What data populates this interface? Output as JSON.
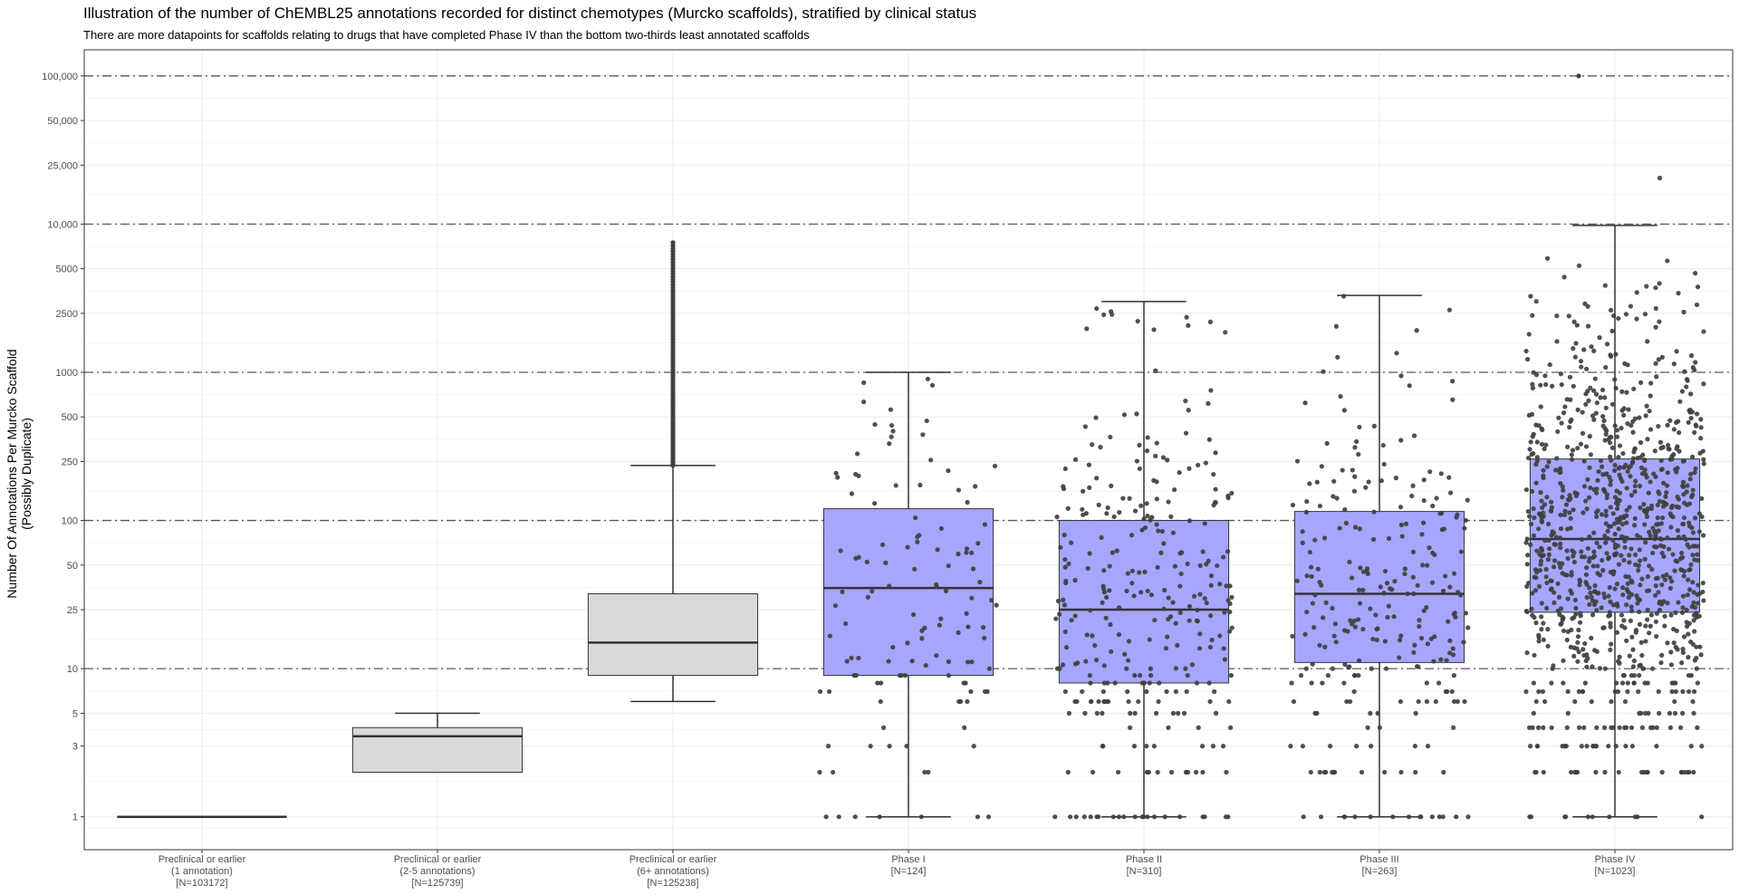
{
  "chart_data": {
    "type": "box",
    "title": "Illustration of the number of ChEMBL25 annotations recorded for distinct chemotypes (Murcko scaffolds), stratified by clinical status",
    "subtitle": "There are more datapoints for scaffolds relating to drugs that have completed Phase IV than the bottom two-thirds least annotated scaffolds",
    "ylabel_lines": [
      "Number Of Annotations Per Murcko Scaffold",
      "(Possibly Duplicate)"
    ],
    "xlabel": "",
    "y_scale": "log10",
    "ylim": [
      0.6,
      150000
    ],
    "y_ticks": [
      1,
      3,
      5,
      10,
      25,
      50,
      100,
      250,
      500,
      1000,
      2500,
      5000,
      10000,
      25000,
      50000,
      100000
    ],
    "y_tick_labels": [
      "1",
      "3",
      "5",
      "10",
      "25",
      "50",
      "100",
      "250",
      "500",
      "1000",
      "2500",
      "5000",
      "10,000",
      "25,000",
      "50,000",
      "100,000"
    ],
    "reference_lines": [
      10,
      100,
      1000,
      10000,
      100000
    ],
    "grid": true,
    "colors": {
      "preclinical_fill": "#d9d9d9",
      "clinical_fill": "#a6a6ff",
      "points": "#404040",
      "box_line": "#333333",
      "ref_line": "#595959"
    },
    "categories": [
      {
        "lines": [
          "Preclinical or earlier",
          "(1 annotation)",
          "[N=103172]"
        ],
        "q1": 1,
        "median": 1,
        "q3": 1,
        "whisker_low": 1,
        "whisker_high": 1,
        "fill": "preclinical",
        "jitter": false,
        "n_points": 0
      },
      {
        "lines": [
          "Preclinical or earlier",
          "(2-5 annotations)",
          "[N=125739]"
        ],
        "q1": 2,
        "median": 3.5,
        "q3": 4,
        "whisker_low": 2,
        "whisker_high": 5,
        "fill": "preclinical",
        "jitter": false,
        "n_points": 0
      },
      {
        "lines": [
          "Preclinical or earlier",
          "(6+ annotations)",
          "[N=125238]"
        ],
        "q1": 9,
        "median": 15,
        "q3": 32,
        "whisker_low": 6,
        "whisker_high": 235,
        "fill": "preclinical",
        "jitter": false,
        "outlier_range": [
          235,
          7500
        ],
        "n_points": 0
      },
      {
        "lines": [
          "Phase I",
          "[N=124]"
        ],
        "q1": 9,
        "median": 35,
        "q3": 120,
        "whisker_low": 1,
        "whisker_high": 1000,
        "fill": "clinical",
        "jitter": true,
        "n_points": 124,
        "max_point": 1000
      },
      {
        "lines": [
          "Phase II",
          "[N=310]"
        ],
        "q1": 8,
        "median": 25,
        "q3": 100,
        "whisker_low": 1,
        "whisker_high": 3000,
        "fill": "clinical",
        "jitter": true,
        "n_points": 310,
        "max_point": 3000
      },
      {
        "lines": [
          "Phase III",
          "[N=263]"
        ],
        "q1": 11,
        "median": 32,
        "q3": 115,
        "whisker_low": 1,
        "whisker_high": 3300,
        "fill": "clinical",
        "jitter": true,
        "n_points": 263,
        "max_point": 3300
      },
      {
        "lines": [
          "Phase IV",
          "[N=1023]"
        ],
        "q1": 24,
        "median": 75,
        "q3": 260,
        "whisker_low": 1,
        "whisker_high": 9800,
        "fill": "clinical",
        "jitter": true,
        "n_points": 1023,
        "max_point": 100000
      }
    ]
  }
}
